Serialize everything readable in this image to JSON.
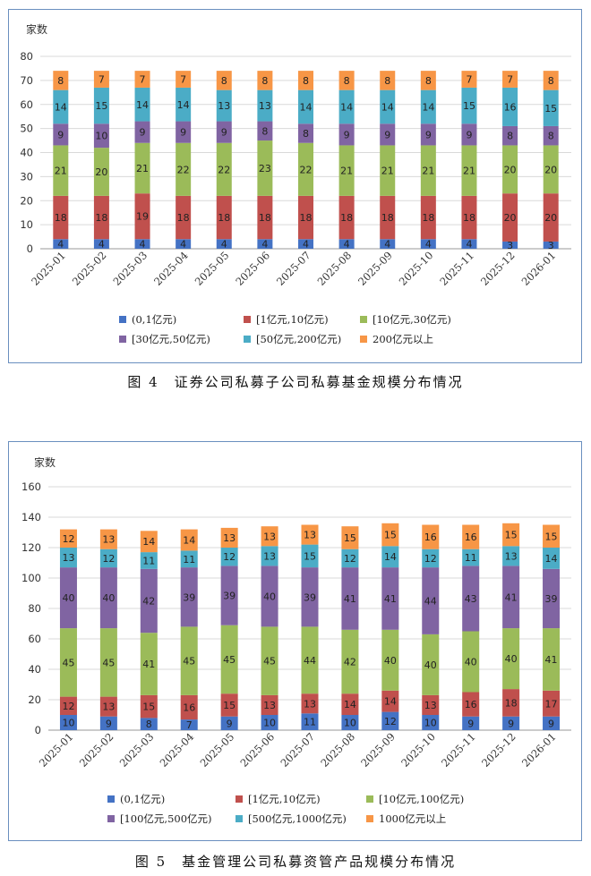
{
  "captions": {
    "fig4": "图 4　证券公司私募子公司私募基金规模分布情况",
    "fig5": "图 5　基金管理公司私募资管产品规模分布情况"
  },
  "chart_data": [
    {
      "type": "bar",
      "stacked": true,
      "ylabel": "家数",
      "ylim": [
        0,
        80
      ],
      "yticks": [
        0,
        10,
        20,
        30,
        40,
        50,
        60,
        70,
        80
      ],
      "grid": true,
      "legend_position": "bottom",
      "categories": [
        "2025-01",
        "2025-02",
        "2025-03",
        "2025-04",
        "2025-05",
        "2025-06",
        "2025-07",
        "2025-08",
        "2025-09",
        "2025-10",
        "2025-11",
        "2025-12",
        "2026-01"
      ],
      "series": [
        {
          "name": "(0,1亿元)",
          "color": "#4472c4",
          "values": [
            4,
            4,
            4,
            4,
            4,
            4,
            4,
            4,
            4,
            4,
            4,
            3,
            3
          ]
        },
        {
          "name": "[1亿元,10亿元)",
          "color": "#c0504d",
          "values": [
            18,
            18,
            19,
            18,
            18,
            18,
            18,
            18,
            18,
            18,
            18,
            20,
            20
          ]
        },
        {
          "name": "[10亿元,30亿元)",
          "color": "#9bbb59",
          "values": [
            21,
            20,
            21,
            22,
            22,
            23,
            22,
            21,
            21,
            21,
            21,
            20,
            20
          ]
        },
        {
          "name": "[30亿元,50亿元)",
          "color": "#8064a2",
          "values": [
            9,
            10,
            9,
            9,
            9,
            8,
            8,
            9,
            9,
            9,
            9,
            8,
            8
          ]
        },
        {
          "name": "[50亿元,200亿元)",
          "color": "#4bacc6",
          "values": [
            14,
            15,
            14,
            14,
            13,
            13,
            14,
            14,
            14,
            14,
            15,
            16,
            15
          ]
        },
        {
          "name": "200亿元以上",
          "color": "#f79646",
          "values": [
            8,
            7,
            7,
            7,
            8,
            8,
            8,
            8,
            8,
            8,
            7,
            7,
            8
          ]
        }
      ]
    },
    {
      "type": "bar",
      "stacked": true,
      "ylabel": "家数",
      "ylim": [
        0,
        160
      ],
      "yticks": [
        0,
        20,
        40,
        60,
        80,
        100,
        120,
        140,
        160
      ],
      "grid": true,
      "legend_position": "bottom",
      "categories": [
        "2025-01",
        "2025-02",
        "2025-03",
        "2025-04",
        "2025-05",
        "2025-06",
        "2025-07",
        "2025-08",
        "2025-09",
        "2025-10",
        "2025-11",
        "2025-12",
        "2026-01"
      ],
      "series": [
        {
          "name": "(0,1亿元)",
          "color": "#4472c4",
          "values": [
            10,
            9,
            8,
            7,
            9,
            10,
            11,
            10,
            12,
            10,
            9,
            9,
            9
          ]
        },
        {
          "name": "[1亿元,10亿元)",
          "color": "#c0504d",
          "values": [
            12,
            13,
            15,
            16,
            15,
            13,
            13,
            14,
            14,
            13,
            16,
            18,
            17
          ]
        },
        {
          "name": "[10亿元,100亿元)",
          "color": "#9bbb59",
          "values": [
            45,
            45,
            41,
            45,
            45,
            45,
            44,
            42,
            40,
            40,
            40,
            40,
            41
          ]
        },
        {
          "name": "[100亿元,500亿元)",
          "color": "#8064a2",
          "values": [
            40,
            40,
            42,
            39,
            39,
            40,
            39,
            41,
            41,
            44,
            43,
            41,
            39
          ]
        },
        {
          "name": "[500亿元,1000亿元)",
          "color": "#4bacc6",
          "values": [
            13,
            12,
            11,
            11,
            12,
            13,
            15,
            12,
            14,
            12,
            11,
            13,
            14
          ]
        },
        {
          "name": "1000亿元以上",
          "color": "#f79646",
          "values": [
            12,
            13,
            14,
            14,
            13,
            13,
            13,
            15,
            15,
            16,
            16,
            15,
            15
          ]
        }
      ]
    }
  ]
}
